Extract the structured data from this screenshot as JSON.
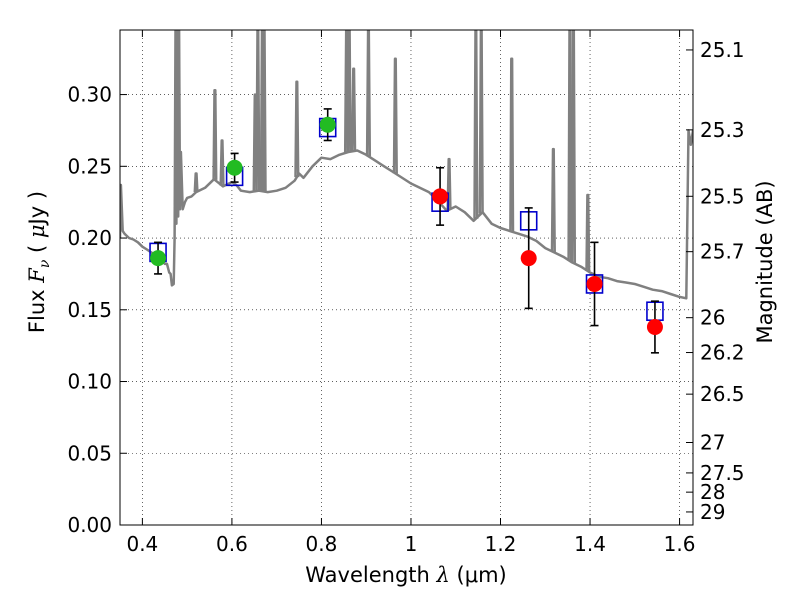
{
  "chart_data": {
    "type": "scatter",
    "xlabel": "Wavelength  λ (μm)",
    "xlabel_parts": {
      "prefix": "Wavelength  ",
      "lambda": "λ",
      "unit": "(μm)"
    },
    "ylabel": "Flux  Fν  ( μJy )",
    "ylabel_parts": {
      "prefix": "Flux  ",
      "symbol": "F",
      "sub": "ν",
      "open": "( ",
      "mu": "μ",
      "unit": "Jy )"
    },
    "y2label": "Magnitude (AB)",
    "xlim": [
      0.35,
      1.63
    ],
    "ylim": [
      0.0,
      0.345
    ],
    "x_ticks": [
      0.4,
      0.6,
      0.8,
      1.0,
      1.2,
      1.4,
      1.6
    ],
    "x_tick_labels": [
      "0.4",
      "0.6",
      "0.8",
      "1",
      "1.2",
      "1.4",
      "1.6"
    ],
    "y_ticks": [
      0.0,
      0.05,
      0.1,
      0.15,
      0.2,
      0.25,
      0.3
    ],
    "y_tick_labels": [
      "0.00",
      "0.05",
      "0.10",
      "0.15",
      "0.20",
      "0.25",
      "0.30"
    ],
    "mag_ticks": [
      {
        "label": "25.1",
        "flux": 0.3311
      },
      {
        "label": "25.3",
        "flux": 0.2754
      },
      {
        "label": "25.5",
        "flux": 0.2291
      },
      {
        "label": "25.7",
        "flux": 0.1905
      },
      {
        "label": "26",
        "flux": 0.1445
      },
      {
        "label": "26.2",
        "flux": 0.1202
      },
      {
        "label": "26.5",
        "flux": 0.0912
      },
      {
        "label": "27",
        "flux": 0.0575
      },
      {
        "label": "27.5",
        "flux": 0.0363
      },
      {
        "label": "28",
        "flux": 0.0229
      },
      {
        "label": "29",
        "flux": 0.0091
      }
    ],
    "grid": true,
    "colors": {
      "model": "#808080",
      "green": "#22bb22",
      "red": "#ff0000",
      "box": "#0000cc",
      "errorbar": "#000000"
    },
    "model_spectrum": {
      "x": [
        0.35,
        0.352,
        0.356,
        0.36,
        0.37,
        0.38,
        0.39,
        0.4,
        0.41,
        0.42,
        0.43,
        0.44,
        0.45,
        0.455,
        0.46,
        0.463,
        0.466,
        0.47,
        0.472,
        0.474,
        0.476,
        0.478,
        0.48,
        0.482,
        0.484,
        0.486,
        0.49,
        0.495,
        0.5,
        0.51,
        0.52,
        0.54,
        0.56,
        0.58,
        0.6,
        0.61,
        0.62,
        0.64,
        0.66,
        0.68,
        0.7,
        0.72,
        0.74,
        0.75,
        0.76,
        0.78,
        0.8,
        0.82,
        0.84,
        0.86,
        0.88,
        0.9,
        0.92,
        0.94,
        0.96,
        1.0,
        1.04,
        1.06,
        1.08,
        1.1,
        1.12,
        1.14,
        1.16,
        1.18,
        1.2,
        1.22,
        1.24,
        1.26,
        1.28,
        1.3,
        1.32,
        1.34,
        1.36,
        1.38,
        1.4,
        1.42,
        1.44,
        1.46,
        1.48,
        1.5,
        1.52,
        1.54,
        1.56,
        1.58,
        1.6,
        1.615,
        1.62,
        1.625,
        1.63
      ],
      "y": [
        0.2,
        0.237,
        0.205,
        0.203,
        0.2,
        0.199,
        0.197,
        0.194,
        0.192,
        0.19,
        0.188,
        0.186,
        0.182,
        0.182,
        0.176,
        0.175,
        0.167,
        0.168,
        0.2,
        0.345,
        0.21,
        0.345,
        0.215,
        0.345,
        0.22,
        0.26,
        0.22,
        0.225,
        0.228,
        0.229,
        0.232,
        0.235,
        0.241,
        0.236,
        0.239,
        0.237,
        0.233,
        0.232,
        0.233,
        0.232,
        0.233,
        0.235,
        0.24,
        0.245,
        0.242,
        0.25,
        0.256,
        0.255,
        0.258,
        0.26,
        0.261,
        0.258,
        0.254,
        0.25,
        0.246,
        0.238,
        0.232,
        0.226,
        0.219,
        0.222,
        0.218,
        0.212,
        0.218,
        0.21,
        0.207,
        0.205,
        0.203,
        0.201,
        0.198,
        0.193,
        0.19,
        0.187,
        0.183,
        0.18,
        0.176,
        0.173,
        0.172,
        0.17,
        0.169,
        0.168,
        0.166,
        0.164,
        0.163,
        0.161,
        0.159,
        0.158,
        0.275,
        0.265,
        0.275
      ]
    },
    "model_emission_lines": [
      {
        "x": 0.52,
        "peak": 0.245
      },
      {
        "x": 0.562,
        "peak": 0.303
      },
      {
        "x": 0.578,
        "peak": 0.268
      },
      {
        "x": 0.652,
        "peak": 0.3
      },
      {
        "x": 0.658,
        "peak": 0.345
      },
      {
        "x": 0.668,
        "peak": 0.345
      },
      {
        "x": 0.672,
        "peak": 0.345
      },
      {
        "x": 0.745,
        "peak": 0.309
      },
      {
        "x": 0.856,
        "peak": 0.345
      },
      {
        "x": 0.862,
        "peak": 0.345
      },
      {
        "x": 0.872,
        "peak": 0.318
      },
      {
        "x": 0.905,
        "peak": 0.345
      },
      {
        "x": 0.965,
        "peak": 0.325
      },
      {
        "x": 1.085,
        "peak": 0.255
      },
      {
        "x": 1.145,
        "peak": 0.345
      },
      {
        "x": 1.157,
        "peak": 0.345
      },
      {
        "x": 1.225,
        "peak": 0.325
      },
      {
        "x": 1.318,
        "peak": 0.262
      },
      {
        "x": 1.355,
        "peak": 0.345
      },
      {
        "x": 1.363,
        "peak": 0.345
      },
      {
        "x": 1.395,
        "peak": 0.23
      }
    ],
    "model_photometry": [
      {
        "x": 0.435,
        "y": 0.19
      },
      {
        "x": 0.606,
        "y": 0.243
      },
      {
        "x": 0.814,
        "y": 0.277
      },
      {
        "x": 1.065,
        "y": 0.225
      },
      {
        "x": 1.263,
        "y": 0.212
      },
      {
        "x": 1.41,
        "y": 0.168
      },
      {
        "x": 1.545,
        "y": 0.149
      }
    ],
    "observed_optical": [
      {
        "x": 0.435,
        "y": 0.186,
        "err": 0.011
      },
      {
        "x": 0.606,
        "y": 0.249,
        "err": 0.01
      },
      {
        "x": 0.814,
        "y": 0.279,
        "err": 0.011
      }
    ],
    "observed_nir": [
      {
        "x": 1.065,
        "y": 0.229,
        "err": 0.02
      },
      {
        "x": 1.263,
        "y": 0.186,
        "err": 0.035
      },
      {
        "x": 1.41,
        "y": 0.168,
        "err": 0.029
      },
      {
        "x": 1.545,
        "y": 0.138,
        "err": 0.018
      }
    ]
  }
}
